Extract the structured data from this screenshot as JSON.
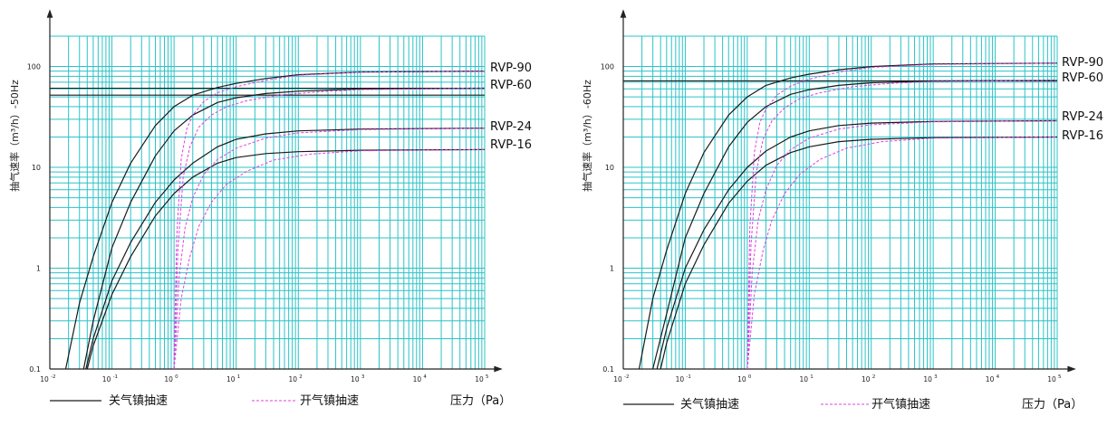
{
  "legend": {
    "closed_gas_ballast": "关气镇抽速",
    "open_gas_ballast": "开气镇抽速",
    "x_axis_label": "压力（Pa）"
  },
  "colors": {
    "grid": "#2bc3c7",
    "closed_line": "#1a1a1a",
    "open_line": "#e040e0",
    "axis": "#222222"
  },
  "chart_data": [
    {
      "type": "line",
      "x_scale": "log",
      "y_scale": "log",
      "xlim": [
        0.01,
        100000
      ],
      "ylim": [
        0.1,
        200
      ],
      "x_ticks": [
        0.01,
        0.1,
        1,
        10,
        100,
        1000,
        10000,
        100000
      ],
      "x_tick_labels": [
        {
          "base": "10",
          "exp": "-2"
        },
        {
          "base": "10",
          "exp": "-1"
        },
        {
          "base": "10",
          "exp": "0"
        },
        {
          "base": "10",
          "exp": "1"
        },
        {
          "base": "10",
          "exp": "2"
        },
        {
          "base": "10",
          "exp": "3"
        },
        {
          "base": "10",
          "exp": "4"
        },
        {
          "base": "10",
          "exp": "5"
        }
      ],
      "y_ticks": [
        0.1,
        1,
        10,
        100
      ],
      "y_tick_labels": [
        "0.1",
        "1",
        "10",
        "100"
      ],
      "ylabel": "抽气速率（m³/h）-50Hz",
      "xlabel": "压力（Pa）",
      "grid": true,
      "ref_lines": [
        {
          "y": 61
        },
        {
          "y": 52
        }
      ],
      "series": [
        {
          "name": "RVP-90",
          "style": "closed",
          "x": [
            0.018,
            0.03,
            0.05,
            0.1,
            0.2,
            0.5,
            1,
            2,
            5,
            10,
            30,
            100,
            1000,
            100000
          ],
          "y": [
            0.1,
            0.45,
            1.3,
            4.5,
            11,
            26,
            40,
            52,
            62,
            68,
            76,
            83,
            88,
            90
          ]
        },
        {
          "name": "RVP-60",
          "style": "closed",
          "x": [
            0.035,
            0.05,
            0.1,
            0.2,
            0.5,
            1,
            2,
            5,
            10,
            30,
            100,
            1000,
            100000
          ],
          "y": [
            0.1,
            0.3,
            1.6,
            4.5,
            13,
            23,
            33,
            44,
            49,
            54,
            57,
            60,
            61
          ]
        },
        {
          "name": "RVP-24",
          "style": "closed",
          "x": [
            0.038,
            0.05,
            0.1,
            0.2,
            0.5,
            1,
            2,
            5,
            10,
            30,
            100,
            1000,
            100000
          ],
          "y": [
            0.1,
            0.2,
            0.75,
            1.8,
            4.5,
            7.5,
            11,
            16,
            19,
            21.5,
            23,
            24,
            24.5
          ]
        },
        {
          "name": "RVP-16",
          "style": "closed",
          "x": [
            0.04,
            0.05,
            0.1,
            0.2,
            0.5,
            1,
            2,
            5,
            10,
            30,
            100,
            1000,
            100000
          ],
          "y": [
            0.1,
            0.17,
            0.55,
            1.3,
            3.3,
            5.5,
            8,
            11,
            12.5,
            13.7,
            14.3,
            14.8,
            15
          ]
        },
        {
          "name": "",
          "style": "open",
          "x": [
            1,
            1.1,
            1.3,
            1.6,
            2,
            3,
            5,
            10,
            30,
            100,
            1000,
            100000
          ],
          "y": [
            0.1,
            2,
            12,
            24,
            33,
            45,
            55,
            63,
            73,
            82,
            88,
            90
          ]
        },
        {
          "name": "",
          "style": "open",
          "x": [
            1,
            1.15,
            1.4,
            1.8,
            2.5,
            4,
            7,
            15,
            50,
            200,
            1000,
            100000
          ],
          "y": [
            0.1,
            1.5,
            8,
            16,
            25,
            33,
            40,
            46,
            52,
            56,
            59,
            61
          ]
        },
        {
          "name": "",
          "style": "open",
          "x": [
            1,
            1.2,
            1.5,
            2,
            3,
            5,
            10,
            30,
            100,
            1000,
            100000
          ],
          "y": [
            0.1,
            0.8,
            2.5,
            5,
            8.5,
            12,
            15.5,
            19.5,
            22,
            23.7,
            24.5
          ]
        },
        {
          "name": "",
          "style": "open",
          "x": [
            1,
            1.3,
            1.8,
            2.5,
            4,
            7,
            15,
            40,
            150,
            1000,
            100000
          ],
          "y": [
            0.1,
            0.5,
            1.3,
            2.6,
            4.5,
            6.8,
            9.2,
            11.8,
            13.5,
            14.6,
            15
          ]
        }
      ],
      "series_labels": [
        "RVP-90",
        "RVP-60",
        "RVP-24",
        "RVP-16"
      ]
    },
    {
      "type": "line",
      "x_scale": "log",
      "y_scale": "log",
      "xlim": [
        0.01,
        100000
      ],
      "ylim": [
        0.1,
        200
      ],
      "x_ticks": [
        0.01,
        0.1,
        1,
        10,
        100,
        1000,
        10000,
        100000
      ],
      "x_tick_labels": [
        {
          "base": "10",
          "exp": "-2"
        },
        {
          "base": "10",
          "exp": "-1"
        },
        {
          "base": "10",
          "exp": "0"
        },
        {
          "base": "10",
          "exp": "1"
        },
        {
          "base": "10",
          "exp": "2"
        },
        {
          "base": "10",
          "exp": "3"
        },
        {
          "base": "10",
          "exp": "4"
        },
        {
          "base": "10",
          "exp": "5"
        }
      ],
      "y_ticks": [
        0.1,
        1,
        10,
        100
      ],
      "y_tick_labels": [
        "0.1",
        "1",
        "10",
        "100"
      ],
      "ylabel": "抽气速率（m³/h）-60Hz",
      "xlabel": "压力（Pa）",
      "grid": true,
      "ref_lines": [
        {
          "y": 72
        }
      ],
      "series": [
        {
          "name": "RVP-90",
          "style": "closed",
          "x": [
            0.018,
            0.03,
            0.05,
            0.1,
            0.2,
            0.5,
            1,
            2,
            5,
            10,
            30,
            100,
            1000,
            100000
          ],
          "y": [
            0.1,
            0.5,
            1.5,
            5.5,
            14,
            33,
            50,
            65,
            77,
            84,
            93,
            100,
            106,
            108
          ]
        },
        {
          "name": "RVP-60",
          "style": "closed",
          "x": [
            0.03,
            0.05,
            0.1,
            0.2,
            0.5,
            1,
            2,
            5,
            10,
            30,
            100,
            1000,
            100000
          ],
          "y": [
            0.1,
            0.35,
            2,
            5.5,
            16,
            28,
            40,
            53,
            59,
            65,
            69,
            72,
            73
          ]
        },
        {
          "name": "RVP-24",
          "style": "closed",
          "x": [
            0.035,
            0.05,
            0.1,
            0.2,
            0.5,
            1,
            2,
            5,
            10,
            30,
            100,
            1000,
            100000
          ],
          "y": [
            0.1,
            0.25,
            1,
            2.4,
            6,
            10,
            14.5,
            20,
            23,
            26,
            27.5,
            28.5,
            29
          ]
        },
        {
          "name": "RVP-16",
          "style": "closed",
          "x": [
            0.04,
            0.05,
            0.1,
            0.2,
            0.5,
            1,
            2,
            5,
            10,
            30,
            100,
            1000,
            100000
          ],
          "y": [
            0.1,
            0.18,
            0.7,
            1.7,
            4.4,
            7.3,
            10.5,
            14,
            16,
            18,
            19,
            19.7,
            20
          ]
        },
        {
          "name": "",
          "style": "open",
          "x": [
            1,
            1.1,
            1.3,
            1.6,
            2,
            3,
            5,
            10,
            30,
            100,
            1000,
            100000
          ],
          "y": [
            0.1,
            2.5,
            14,
            28,
            38,
            52,
            64,
            75,
            88,
            98,
            105,
            108
          ]
        },
        {
          "name": "",
          "style": "open",
          "x": [
            1,
            1.15,
            1.4,
            1.8,
            2.5,
            4,
            7,
            15,
            50,
            200,
            1000,
            100000
          ],
          "y": [
            0.1,
            1.7,
            9,
            19,
            29,
            39,
            48,
            55,
            63,
            68,
            71,
            73
          ]
        },
        {
          "name": "",
          "style": "open",
          "x": [
            1,
            1.2,
            1.5,
            2,
            3,
            5,
            10,
            30,
            100,
            1000,
            100000
          ],
          "y": [
            0.1,
            0.9,
            3,
            6,
            10.5,
            15,
            19.5,
            24,
            26.5,
            28.3,
            29
          ]
        },
        {
          "name": "",
          "style": "open",
          "x": [
            1,
            1.3,
            1.8,
            2.5,
            4,
            7,
            15,
            40,
            150,
            1000,
            100000
          ],
          "y": [
            0.1,
            0.55,
            1.5,
            3,
            5.5,
            8.5,
            12,
            15.5,
            18,
            19.5,
            20
          ]
        }
      ],
      "series_labels": [
        "RVP-90",
        "RVP-60",
        "RVP-24",
        "RVP-16"
      ]
    }
  ]
}
